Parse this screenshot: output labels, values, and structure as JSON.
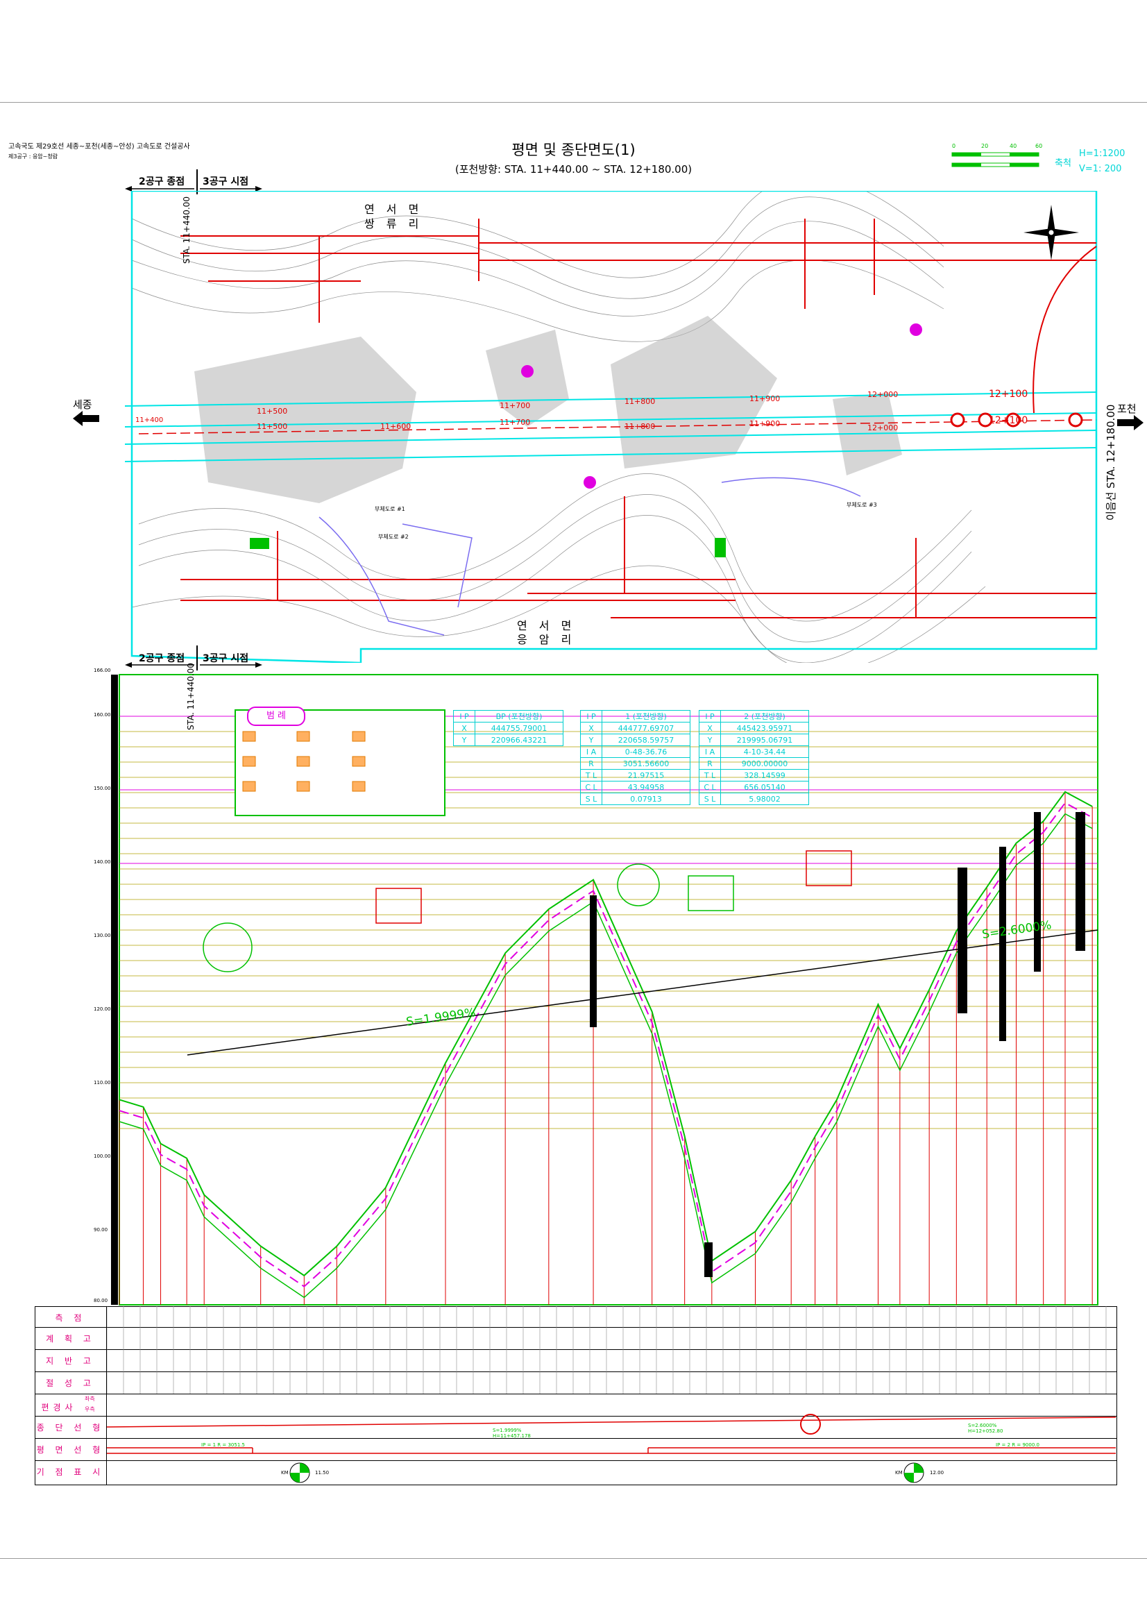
{
  "header": {
    "project_line": "고속국도 제29호선 세종~포천(세종~안성) 고속도로 건설공사",
    "section_line": "제3공구 : 응암~청람",
    "title": "평면 및 종단면도(1)",
    "subtitle": "(포천방향: STA. 11+440.00 ~ STA. 12+180.00)",
    "scale_label": "축척",
    "scale_h": "H=1:1200",
    "scale_v": "V=1: 200",
    "scale_ticks": [
      "0",
      "20",
      "40",
      "60"
    ]
  },
  "plan": {
    "zone_end": "2공구 종점",
    "zone_start": "3공구 시점",
    "start_sta": "STA. 11+440.00",
    "end_sta": "이음선 STA. 12+180.00",
    "left_dir": "세종",
    "right_dir": "포천",
    "top_area_1": "연 서 면",
    "top_area_2": "쌍 류 리",
    "bottom_area_1": "연 서 면",
    "bottom_area_2": "응 암 리",
    "chainage_labels": [
      "11+400",
      "11+500",
      "11+500",
      "11+600",
      "11+700",
      "11+700",
      "11+800",
      "11+800",
      "11+900",
      "11+900",
      "12+000",
      "12+000",
      "12+100",
      "12+100"
    ],
    "road_labels": [
      "부체도로 #1",
      "부체도로 #2",
      "부체도로 #3"
    ],
    "colors": {
      "boundary": "#00e5e5",
      "red": "#e00000",
      "green": "#00c000",
      "contour": "#8c8c8c"
    }
  },
  "profile": {
    "zone_end": "2공구 종점",
    "zone_start": "3공구 시점",
    "start_sta": "STA. 11+440.00",
    "elevations": [
      "166.00",
      "160.00",
      "150.00",
      "140.00",
      "130.00",
      "120.00",
      "110.00",
      "100.00",
      "90.00",
      "80.00"
    ],
    "slope_1": "S=1.9999%",
    "slope_2": "S=2.6000%",
    "legend_title": "범 례",
    "ip_tables": [
      {
        "rows": [
          [
            "I P",
            "BP (포천방향)"
          ],
          [
            "X",
            "444755.79001"
          ],
          [
            "Y",
            "220966.43221"
          ]
        ]
      },
      {
        "rows": [
          [
            "I P",
            "1 (포천방향)"
          ],
          [
            "X",
            "444777.69707"
          ],
          [
            "Y",
            "220658.59757"
          ],
          [
            "I A",
            "0-48-36.76"
          ],
          [
            "R",
            "3051.56600"
          ],
          [
            "T L",
            "21.97515"
          ],
          [
            "C L",
            "43.94958"
          ],
          [
            "S L",
            "0.07913"
          ]
        ]
      },
      {
        "rows": [
          [
            "I P",
            "2 (포천방향)"
          ],
          [
            "X",
            "445423.95971"
          ],
          [
            "Y",
            "219995.06791"
          ],
          [
            "I A",
            "4-10-34.44"
          ],
          [
            "R",
            "9000.00000"
          ],
          [
            "T L",
            "328.14599"
          ],
          [
            "C L",
            "656.05140"
          ],
          [
            "S L",
            "5.98002"
          ]
        ]
      }
    ],
    "ground_line": [
      [
        0,
        108
      ],
      [
        22,
        107
      ],
      [
        38,
        102
      ],
      [
        62,
        100
      ],
      [
        78,
        95
      ],
      [
        130,
        88
      ],
      [
        170,
        84
      ],
      [
        200,
        88
      ],
      [
        245,
        96
      ],
      [
        300,
        113
      ],
      [
        355,
        128
      ],
      [
        395,
        134
      ],
      [
        436,
        138
      ],
      [
        490,
        120
      ],
      [
        520,
        103
      ],
      [
        545,
        86
      ],
      [
        585,
        90
      ],
      [
        618,
        97
      ],
      [
        640,
        103
      ],
      [
        660,
        108
      ],
      [
        698,
        121
      ],
      [
        718,
        115
      ],
      [
        745,
        123
      ],
      [
        770,
        131
      ],
      [
        798,
        137
      ],
      [
        825,
        143
      ],
      [
        850,
        146
      ],
      [
        870,
        150
      ],
      [
        895,
        148
      ]
    ]
  },
  "table": {
    "row_labels": [
      "측 점",
      "계 획 고",
      "지 반 고",
      "절 성 고",
      "편경사",
      "종 단 선 형",
      "평 면 선 형",
      "기 점 표 시"
    ],
    "cant_sub": [
      "좌측",
      "우측"
    ],
    "vertical_note_1": "S=1.9999%",
    "vertical_note_2": "H=11+457.178",
    "vertical_note_3": "S=2.6000%",
    "vertical_note_4": "H=12+052.80",
    "plan_note_1": "IP = 1  R = 3051.5",
    "plan_note_2": "IP = 2  R = 9000.0",
    "km_1": "11.50",
    "km_2": "12.00",
    "km_label": "KM"
  }
}
